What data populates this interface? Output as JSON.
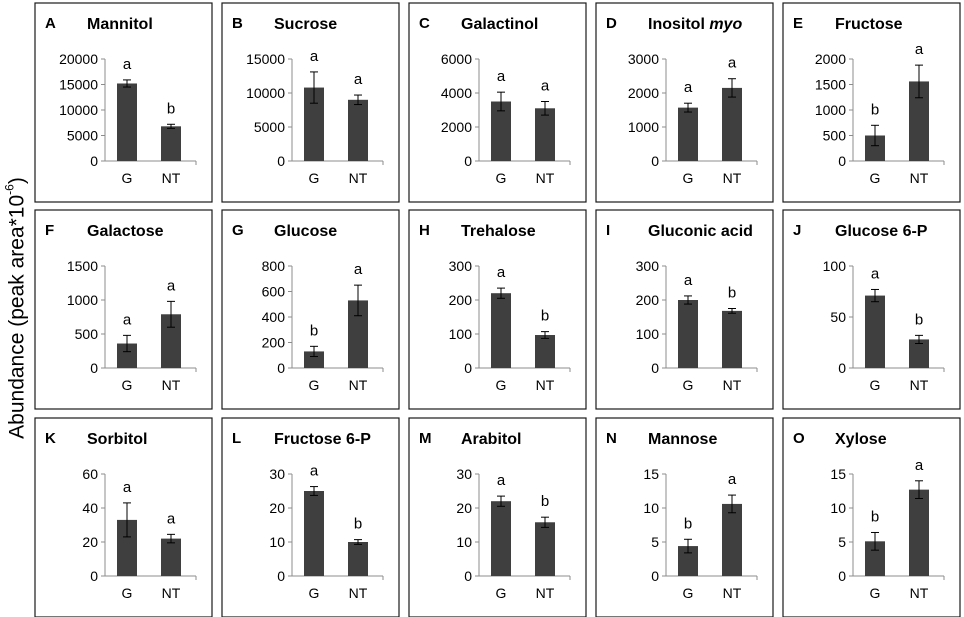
{
  "figure": {
    "ylabel_main": "Abundance (peak area*10",
    "ylabel_exp": "-6",
    "ylabel_close": ")"
  },
  "chart_data": [
    {
      "letter": "A",
      "title": "Mannitol",
      "title_italic": "",
      "type": "bar",
      "categories": [
        "G",
        "NT"
      ],
      "values": [
        15200,
        6800
      ],
      "errors": [
        700,
        400
      ],
      "sig": [
        "a",
        "b"
      ],
      "ylim": [
        0,
        20000
      ],
      "yticks": [
        0,
        5000,
        10000,
        15000,
        20000
      ]
    },
    {
      "letter": "B",
      "title": "Sucrose",
      "title_italic": "",
      "type": "bar",
      "categories": [
        "G",
        "NT"
      ],
      "values": [
        10800,
        9000
      ],
      "errors": [
        2300,
        700
      ],
      "sig": [
        "a",
        "a"
      ],
      "ylim": [
        0,
        15000
      ],
      "yticks": [
        0,
        5000,
        10000,
        15000
      ]
    },
    {
      "letter": "C",
      "title": "Galactinol",
      "title_italic": "",
      "type": "bar",
      "categories": [
        "G",
        "NT"
      ],
      "values": [
        3500,
        3100
      ],
      "errors": [
        550,
        400
      ],
      "sig": [
        "a",
        "a"
      ],
      "ylim": [
        0,
        6000
      ],
      "yticks": [
        0,
        2000,
        4000,
        6000
      ]
    },
    {
      "letter": "D",
      "title": "Inositol ",
      "title_italic": "myo",
      "type": "bar",
      "categories": [
        "G",
        "NT"
      ],
      "values": [
        1570,
        2150
      ],
      "errors": [
        130,
        270
      ],
      "sig": [
        "a",
        "a"
      ],
      "ylim": [
        0,
        3000
      ],
      "yticks": [
        0,
        1000,
        2000,
        3000
      ]
    },
    {
      "letter": "E",
      "title": "Fructose",
      "title_italic": "",
      "type": "bar",
      "categories": [
        "G",
        "NT"
      ],
      "values": [
        500,
        1560
      ],
      "errors": [
        200,
        320
      ],
      "sig": [
        "b",
        "a"
      ],
      "ylim": [
        0,
        2000
      ],
      "yticks": [
        0,
        500,
        1000,
        1500,
        2000
      ]
    },
    {
      "letter": "F",
      "title": "Galactose",
      "title_italic": "",
      "type": "bar",
      "categories": [
        "G",
        "NT"
      ],
      "values": [
        360,
        790
      ],
      "errors": [
        120,
        190
      ],
      "sig": [
        "a",
        "a"
      ],
      "ylim": [
        0,
        1500
      ],
      "yticks": [
        0,
        500,
        1000,
        1500
      ]
    },
    {
      "letter": "G",
      "title": "Glucose",
      "title_italic": "",
      "type": "bar",
      "categories": [
        "G",
        "NT"
      ],
      "values": [
        130,
        530
      ],
      "errors": [
        40,
        120
      ],
      "sig": [
        "b",
        "a"
      ],
      "ylim": [
        0,
        800
      ],
      "yticks": [
        0,
        200,
        400,
        600,
        800
      ]
    },
    {
      "letter": "H",
      "title": "Trehalose",
      "title_italic": "",
      "type": "bar",
      "categories": [
        "G",
        "NT"
      ],
      "values": [
        220,
        97
      ],
      "errors": [
        15,
        10
      ],
      "sig": [
        "a",
        "b"
      ],
      "ylim": [
        0,
        300
      ],
      "yticks": [
        0,
        100,
        200,
        300
      ]
    },
    {
      "letter": "I",
      "title": "Gluconic acid",
      "title_italic": "",
      "type": "bar",
      "categories": [
        "G",
        "NT"
      ],
      "values": [
        200,
        168
      ],
      "errors": [
        12,
        7
      ],
      "sig": [
        "a",
        "b"
      ],
      "ylim": [
        0,
        300
      ],
      "yticks": [
        0,
        100,
        200,
        300
      ]
    },
    {
      "letter": "J",
      "title": "Glucose 6-P",
      "title_italic": "",
      "type": "bar",
      "categories": [
        "G",
        "NT"
      ],
      "values": [
        71,
        28
      ],
      "errors": [
        6,
        4
      ],
      "sig": [
        "a",
        "b"
      ],
      "ylim": [
        0,
        100
      ],
      "yticks": [
        0,
        50,
        100
      ]
    },
    {
      "letter": "K",
      "title": "Sorbitol",
      "title_italic": "",
      "type": "bar",
      "categories": [
        "G",
        "NT"
      ],
      "values": [
        33,
        22
      ],
      "errors": [
        10,
        2.5
      ],
      "sig": [
        "a",
        "a"
      ],
      "ylim": [
        0,
        60
      ],
      "yticks": [
        0,
        20,
        40,
        60
      ]
    },
    {
      "letter": "L",
      "title": "Fructose 6-P",
      "title_italic": "",
      "type": "bar",
      "categories": [
        "G",
        "NT"
      ],
      "values": [
        25,
        10
      ],
      "errors": [
        1.3,
        0.7
      ],
      "sig": [
        "a",
        "b"
      ],
      "ylim": [
        0,
        30
      ],
      "yticks": [
        0,
        10,
        20,
        30
      ]
    },
    {
      "letter": "M",
      "title": "Arabitol",
      "title_italic": "",
      "type": "bar",
      "categories": [
        "G",
        "NT"
      ],
      "values": [
        22,
        15.8
      ],
      "errors": [
        1.5,
        1.5
      ],
      "sig": [
        "a",
        "b"
      ],
      "ylim": [
        0,
        30
      ],
      "yticks": [
        0,
        10,
        20,
        30
      ]
    },
    {
      "letter": "N",
      "title": "Mannose",
      "title_italic": "",
      "type": "bar",
      "categories": [
        "G",
        "NT"
      ],
      "values": [
        4.4,
        10.6
      ],
      "errors": [
        1,
        1.3
      ],
      "sig": [
        "b",
        "a"
      ],
      "ylim": [
        0,
        15
      ],
      "yticks": [
        0,
        5,
        10,
        15
      ]
    },
    {
      "letter": "O",
      "title": "Xylose",
      "title_italic": "",
      "type": "bar",
      "categories": [
        "G",
        "NT"
      ],
      "values": [
        5.1,
        12.7
      ],
      "errors": [
        1.3,
        1.3
      ],
      "sig": [
        "b",
        "a"
      ],
      "ylim": [
        0,
        15
      ],
      "yticks": [
        0,
        5,
        10,
        15
      ]
    }
  ],
  "style": {
    "bar_color": "#3f3f3f",
    "axis_color": "#8c8c8c",
    "frame_color": "#1a1a1a"
  }
}
